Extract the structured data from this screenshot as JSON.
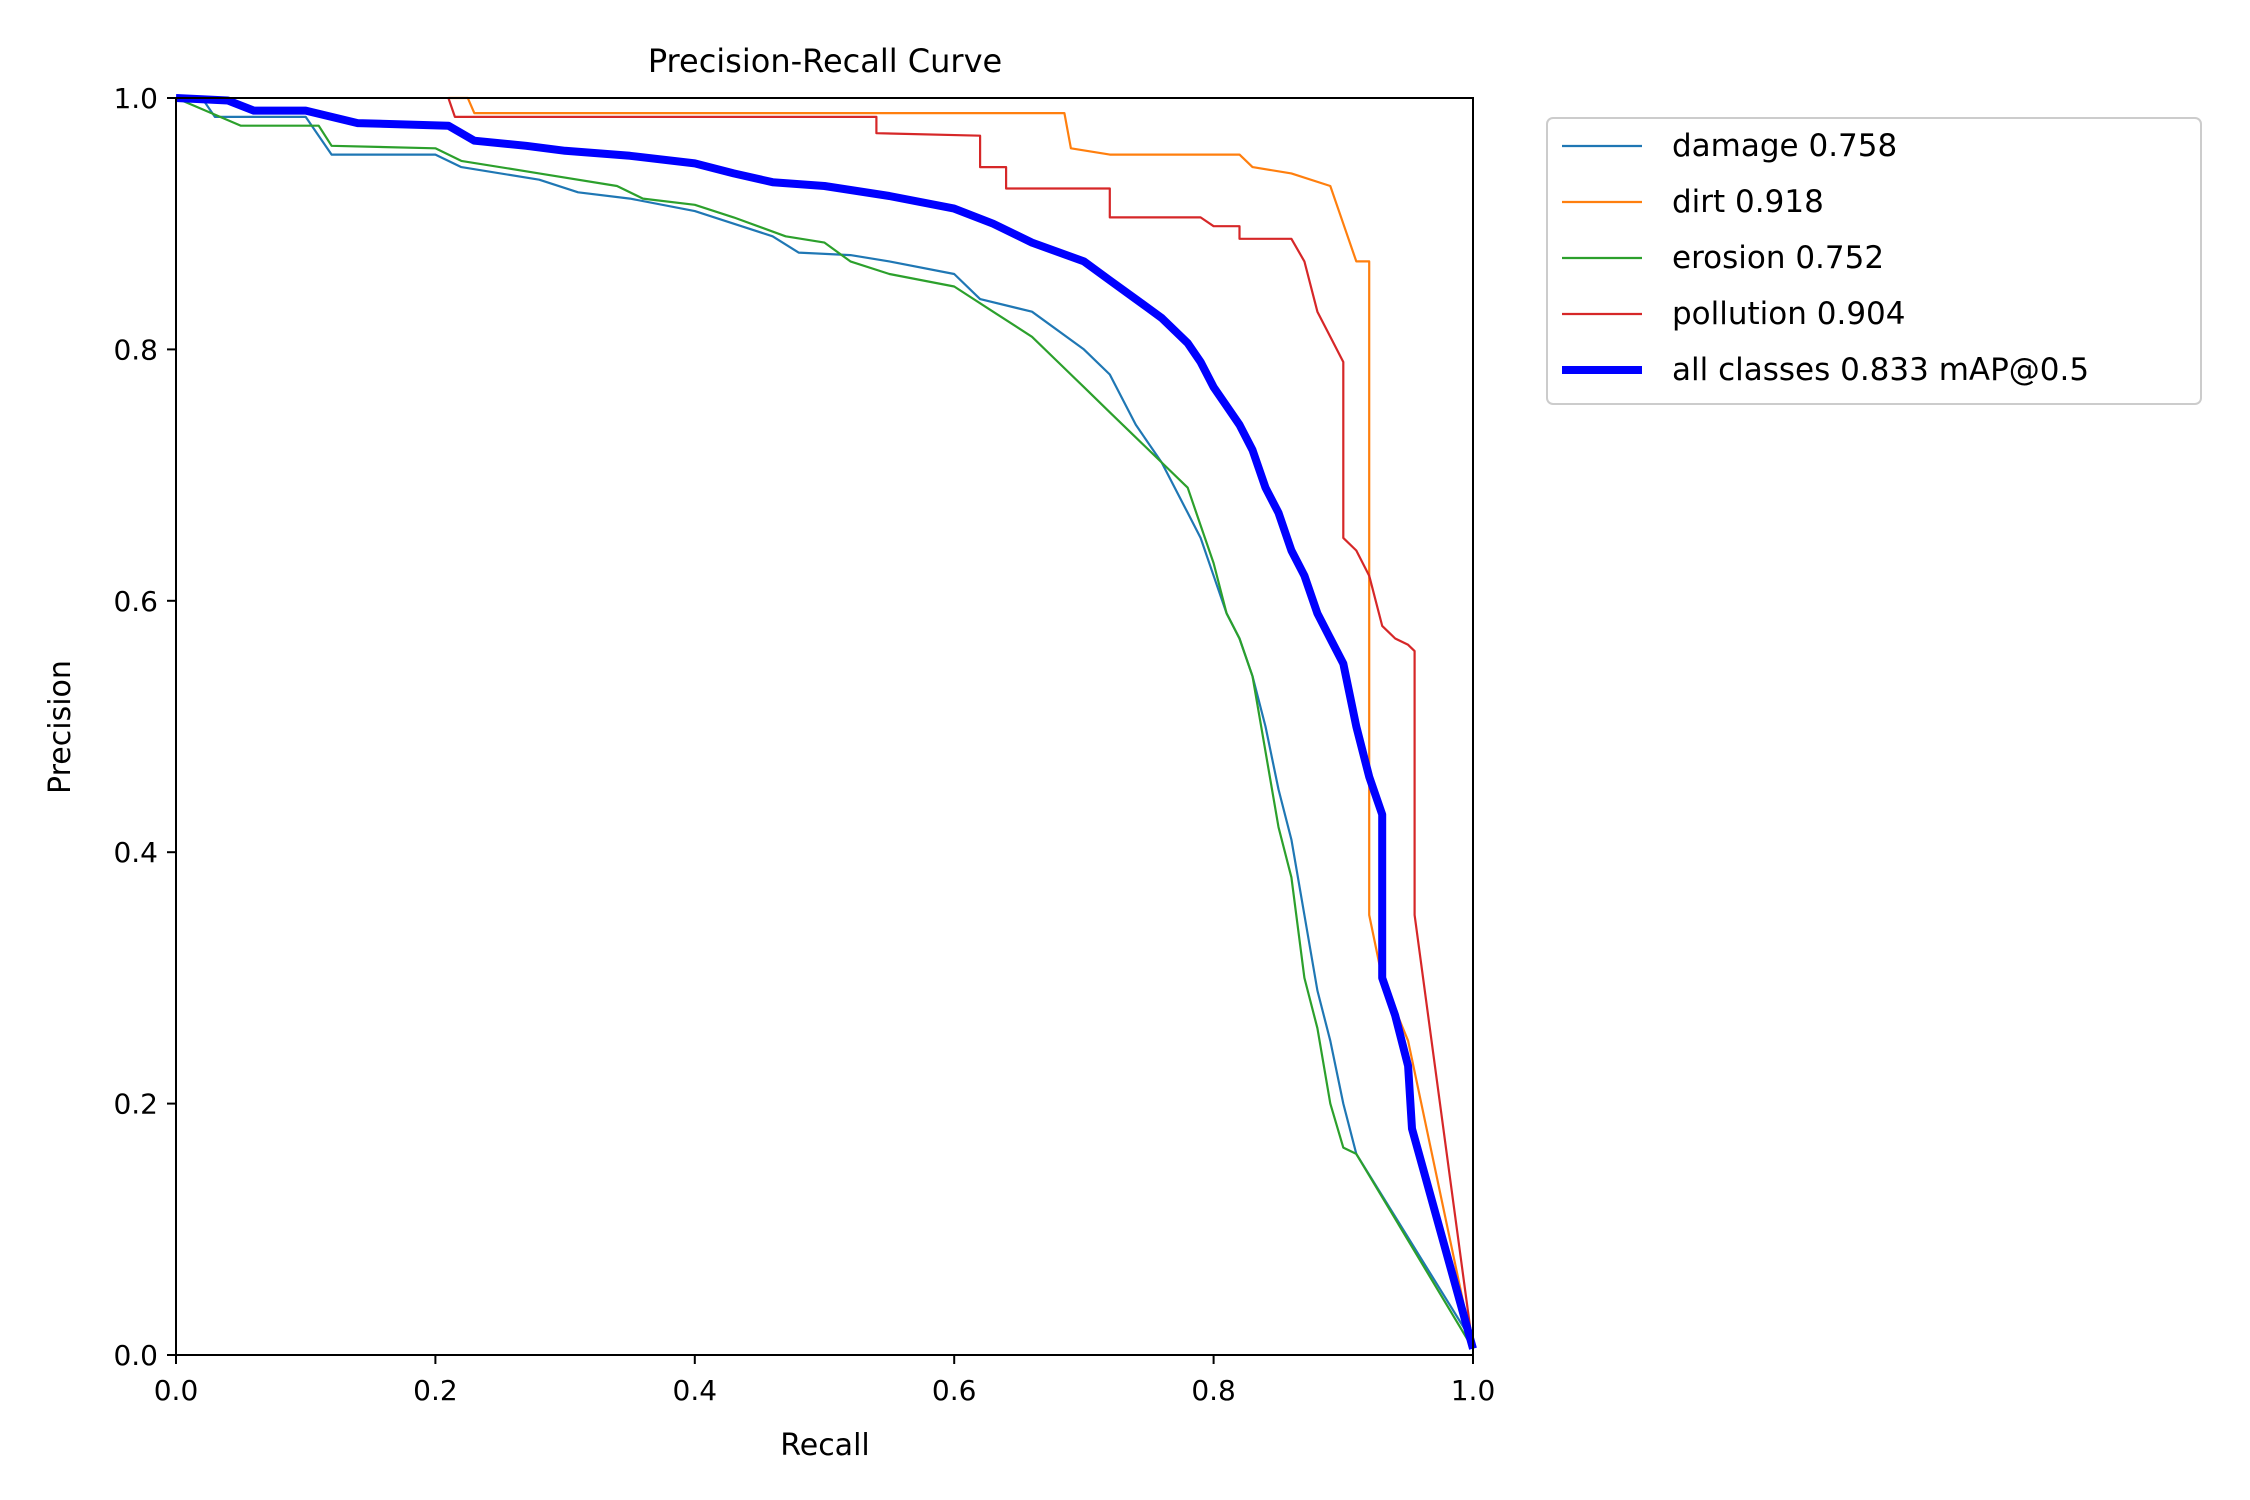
{
  "chart_data": {
    "type": "line",
    "title": "Precision-Recall Curve",
    "xlabel": "Recall",
    "ylabel": "Precision",
    "xlim": [
      0.0,
      1.0
    ],
    "ylim": [
      0.0,
      1.0
    ],
    "xticks": [
      "0.0",
      "0.2",
      "0.4",
      "0.6",
      "0.8",
      "1.0"
    ],
    "yticks": [
      "0.0",
      "0.2",
      "0.4",
      "0.6",
      "0.8",
      "1.0"
    ],
    "grid": false,
    "legend_position": "outside-top-right",
    "series": [
      {
        "name": "damage 0.758",
        "color": "#1f77b4",
        "points": [
          [
            0,
            1.0
          ],
          [
            0.02,
            1.0
          ],
          [
            0.03,
            0.985
          ],
          [
            0.1,
            0.985
          ],
          [
            0.12,
            0.955
          ],
          [
            0.2,
            0.955
          ],
          [
            0.22,
            0.945
          ],
          [
            0.28,
            0.935
          ],
          [
            0.31,
            0.925
          ],
          [
            0.35,
            0.92
          ],
          [
            0.4,
            0.91
          ],
          [
            0.43,
            0.9
          ],
          [
            0.46,
            0.89
          ],
          [
            0.48,
            0.877
          ],
          [
            0.52,
            0.875
          ],
          [
            0.55,
            0.87
          ],
          [
            0.6,
            0.86
          ],
          [
            0.62,
            0.84
          ],
          [
            0.66,
            0.83
          ],
          [
            0.7,
            0.8
          ],
          [
            0.72,
            0.78
          ],
          [
            0.74,
            0.74
          ],
          [
            0.76,
            0.71
          ],
          [
            0.78,
            0.67
          ],
          [
            0.79,
            0.65
          ],
          [
            0.8,
            0.62
          ],
          [
            0.81,
            0.59
          ],
          [
            0.82,
            0.57
          ],
          [
            0.83,
            0.54
          ],
          [
            0.84,
            0.5
          ],
          [
            0.85,
            0.45
          ],
          [
            0.86,
            0.41
          ],
          [
            0.87,
            0.35
          ],
          [
            0.88,
            0.29
          ],
          [
            0.89,
            0.25
          ],
          [
            0.9,
            0.2
          ],
          [
            0.905,
            0.18
          ],
          [
            0.91,
            0.16
          ],
          [
            1.0,
            0.01
          ]
        ]
      },
      {
        "name": "dirt 0.918",
        "color": "#ff7f0e",
        "points": [
          [
            0.21,
            1.0
          ],
          [
            0.225,
            1.0
          ],
          [
            0.23,
            0.988
          ],
          [
            0.685,
            0.988
          ],
          [
            0.69,
            0.96
          ],
          [
            0.72,
            0.955
          ],
          [
            0.82,
            0.955
          ],
          [
            0.83,
            0.945
          ],
          [
            0.86,
            0.94
          ],
          [
            0.89,
            0.93
          ],
          [
            0.9,
            0.9
          ],
          [
            0.91,
            0.87
          ],
          [
            0.92,
            0.87
          ],
          [
            0.92,
            0.35
          ],
          [
            0.93,
            0.3
          ],
          [
            0.95,
            0.25
          ],
          [
            1.0,
            0.005
          ]
        ]
      },
      {
        "name": "erosion 0.752",
        "color": "#2ca02c",
        "points": [
          [
            0,
            1.0
          ],
          [
            0.05,
            0.978
          ],
          [
            0.11,
            0.978
          ],
          [
            0.12,
            0.962
          ],
          [
            0.2,
            0.96
          ],
          [
            0.22,
            0.95
          ],
          [
            0.28,
            0.94
          ],
          [
            0.34,
            0.93
          ],
          [
            0.36,
            0.92
          ],
          [
            0.4,
            0.915
          ],
          [
            0.43,
            0.905
          ],
          [
            0.47,
            0.89
          ],
          [
            0.5,
            0.885
          ],
          [
            0.52,
            0.87
          ],
          [
            0.55,
            0.86
          ],
          [
            0.6,
            0.85
          ],
          [
            0.63,
            0.83
          ],
          [
            0.66,
            0.81
          ],
          [
            0.68,
            0.79
          ],
          [
            0.7,
            0.77
          ],
          [
            0.72,
            0.75
          ],
          [
            0.74,
            0.73
          ],
          [
            0.76,
            0.71
          ],
          [
            0.78,
            0.69
          ],
          [
            0.79,
            0.66
          ],
          [
            0.8,
            0.63
          ],
          [
            0.81,
            0.59
          ],
          [
            0.82,
            0.57
          ],
          [
            0.83,
            0.54
          ],
          [
            0.84,
            0.48
          ],
          [
            0.85,
            0.42
          ],
          [
            0.86,
            0.38
          ],
          [
            0.87,
            0.3
          ],
          [
            0.88,
            0.26
          ],
          [
            0.89,
            0.2
          ],
          [
            0.9,
            0.165
          ],
          [
            0.91,
            0.16
          ],
          [
            1.0,
            0.005
          ]
        ]
      },
      {
        "name": "pollution 0.904",
        "color": "#d62728",
        "points": [
          [
            0.21,
            1.0
          ],
          [
            0.215,
            0.985
          ],
          [
            0.54,
            0.985
          ],
          [
            0.54,
            0.972
          ],
          [
            0.62,
            0.97
          ],
          [
            0.62,
            0.945
          ],
          [
            0.64,
            0.945
          ],
          [
            0.64,
            0.928
          ],
          [
            0.72,
            0.928
          ],
          [
            0.72,
            0.905
          ],
          [
            0.79,
            0.905
          ],
          [
            0.8,
            0.898
          ],
          [
            0.82,
            0.898
          ],
          [
            0.82,
            0.888
          ],
          [
            0.86,
            0.888
          ],
          [
            0.87,
            0.87
          ],
          [
            0.88,
            0.83
          ],
          [
            0.89,
            0.81
          ],
          [
            0.9,
            0.79
          ],
          [
            0.9,
            0.65
          ],
          [
            0.91,
            0.64
          ],
          [
            0.92,
            0.62
          ],
          [
            0.93,
            0.58
          ],
          [
            0.94,
            0.57
          ],
          [
            0.95,
            0.565
          ],
          [
            0.955,
            0.56
          ],
          [
            0.955,
            0.35
          ],
          [
            1.0,
            0.005
          ]
        ]
      },
      {
        "name": "all classes 0.833 mAP@0.5",
        "color": "#0000ff",
        "thick": true,
        "points": [
          [
            0,
            1.0
          ],
          [
            0.04,
            0.998
          ],
          [
            0.06,
            0.99
          ],
          [
            0.1,
            0.99
          ],
          [
            0.14,
            0.98
          ],
          [
            0.21,
            0.978
          ],
          [
            0.23,
            0.966
          ],
          [
            0.27,
            0.962
          ],
          [
            0.3,
            0.958
          ],
          [
            0.35,
            0.954
          ],
          [
            0.4,
            0.948
          ],
          [
            0.43,
            0.94
          ],
          [
            0.46,
            0.933
          ],
          [
            0.5,
            0.93
          ],
          [
            0.55,
            0.922
          ],
          [
            0.6,
            0.912
          ],
          [
            0.63,
            0.9
          ],
          [
            0.66,
            0.885
          ],
          [
            0.7,
            0.87
          ],
          [
            0.72,
            0.855
          ],
          [
            0.74,
            0.84
          ],
          [
            0.76,
            0.825
          ],
          [
            0.78,
            0.805
          ],
          [
            0.79,
            0.79
          ],
          [
            0.8,
            0.77
          ],
          [
            0.81,
            0.755
          ],
          [
            0.82,
            0.74
          ],
          [
            0.83,
            0.72
          ],
          [
            0.84,
            0.69
          ],
          [
            0.85,
            0.67
          ],
          [
            0.86,
            0.64
          ],
          [
            0.87,
            0.62
          ],
          [
            0.88,
            0.59
          ],
          [
            0.89,
            0.57
          ],
          [
            0.9,
            0.55
          ],
          [
            0.91,
            0.5
          ],
          [
            0.92,
            0.46
          ],
          [
            0.93,
            0.43
          ],
          [
            0.93,
            0.3
          ],
          [
            0.94,
            0.27
          ],
          [
            0.95,
            0.23
          ],
          [
            0.953,
            0.18
          ],
          [
            1.0,
            0.005
          ]
        ]
      }
    ]
  }
}
